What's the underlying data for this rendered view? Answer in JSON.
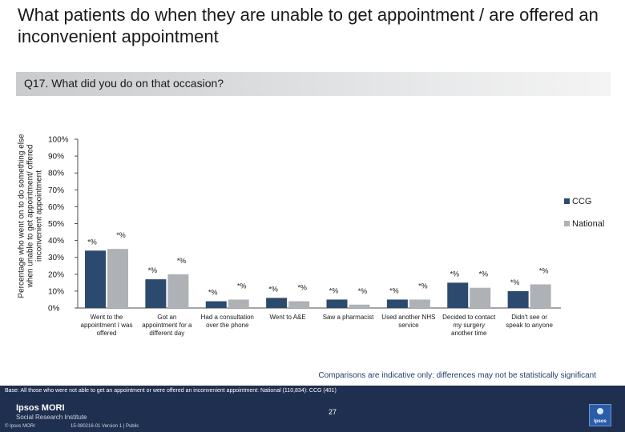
{
  "title": "What patients do when they are unable to get appointment  / are offered an inconvenient appointment",
  "question": "Q17. What did you do on that occasion?",
  "note": "Comparisons are indicative only: differences may not be statistically significant",
  "base": "Base: All those who were not able to get an appointment or were offered an inconvenient appointment: National (110,834): CCG (401)",
  "page_number": "27",
  "footer": {
    "logo_main": "Ipsos MORI",
    "logo_sub": "Social Research Institute",
    "copyright": "© Ipsos MORI",
    "doc_ref": "15-080216-01 Version 1 | Public",
    "icon_label": "Ipsos"
  },
  "colors": {
    "ccg": "#2c4a6e",
    "national": "#aeb2b6",
    "axis": "#4d4d4d"
  },
  "chart_data": {
    "type": "bar",
    "title": "",
    "ylabel": "Percentage who went on to do something else when unable to get appointment/ offered inconvenient appointment",
    "ylim": [
      0,
      100
    ],
    "yticks": [
      "0%",
      "10%",
      "20%",
      "30%",
      "40%",
      "50%",
      "60%",
      "70%",
      "80%",
      "90%",
      "100%"
    ],
    "categories": [
      "Went to the appointment I was offered",
      "Got an appointment for a different day",
      "Had a consultation over the phone",
      "Went to A&E",
      "Saw a pharmacist",
      "Used another NHS service",
      "Decided to contact my surgery another time",
      "Didn't see or speak to anyone"
    ],
    "category_lines": [
      [
        "Went to the",
        "appointment I was",
        "offered"
      ],
      [
        "Got an",
        "appointment for a",
        "different day"
      ],
      [
        "Had a consultation",
        "over the phone"
      ],
      [
        "Went to A&E"
      ],
      [
        "Saw a pharmacist"
      ],
      [
        "Used another NHS",
        "service"
      ],
      [
        "Decided to contact",
        "my surgery",
        "another time"
      ],
      [
        "Didn't see or",
        "speak to anyone"
      ]
    ],
    "series": [
      {
        "name": "CCG",
        "values": [
          34,
          17,
          4,
          6,
          5,
          5,
          15,
          10
        ],
        "labels": [
          "*%",
          "*%",
          "*%",
          "*%",
          "*%",
          "*%",
          "*%",
          "*%"
        ]
      },
      {
        "name": "National",
        "values": [
          35,
          20,
          5,
          4,
          2,
          5,
          12,
          14
        ],
        "labels": [
          "*%",
          "*%",
          "*%",
          "*%",
          "*%",
          "*%",
          "*%",
          "*%"
        ]
      }
    ],
    "legend": "right"
  }
}
